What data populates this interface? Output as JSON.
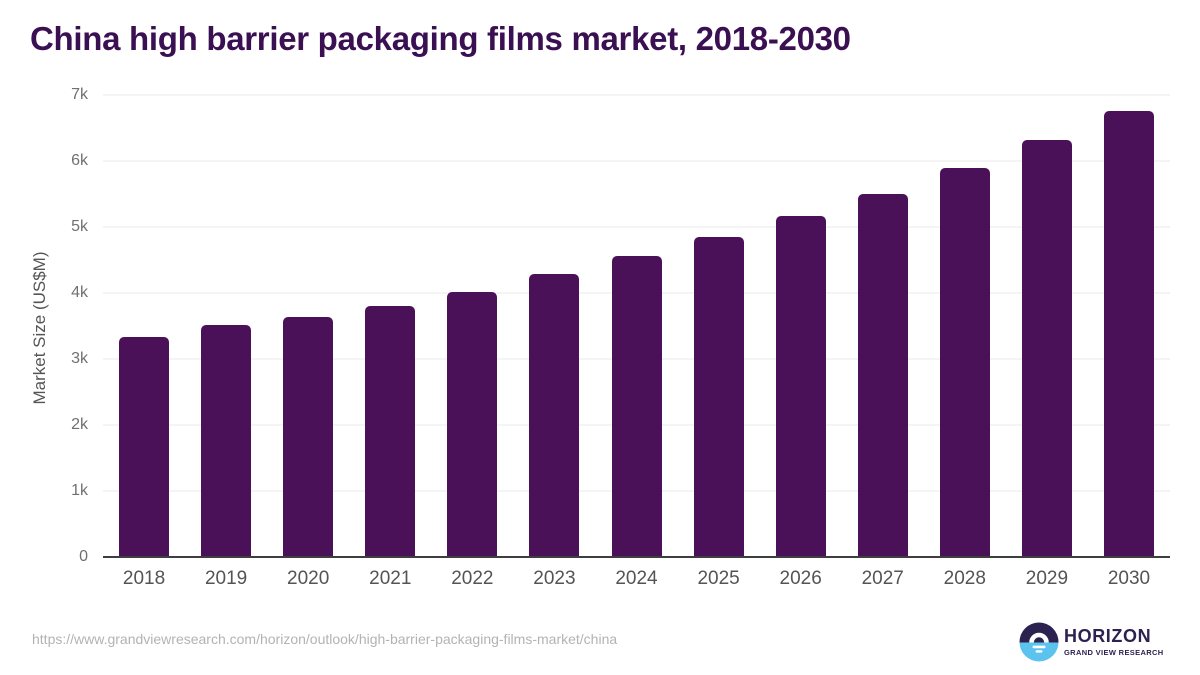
{
  "page": {
    "title": "China high barrier packaging films market, 2018-2030"
  },
  "chart_data": {
    "type": "bar",
    "title": "China high barrier packaging films market, 2018-2030",
    "categories": [
      "2018",
      "2019",
      "2020",
      "2021",
      "2022",
      "2023",
      "2024",
      "2025",
      "2026",
      "2027",
      "2028",
      "2029",
      "2030"
    ],
    "values": [
      3340,
      3510,
      3640,
      3800,
      4020,
      4290,
      4560,
      4850,
      5170,
      5500,
      5890,
      6320,
      6760
    ],
    "xlabel": "",
    "ylabel": "Market Size (US$M)",
    "ylim": [
      0,
      7000
    ],
    "ytick_values": [
      0,
      1000,
      2000,
      3000,
      4000,
      5000,
      6000,
      7000
    ],
    "ytick_labels": [
      "0",
      "1k",
      "2k",
      "3k",
      "4k",
      "5k",
      "6k",
      "7k"
    ],
    "grid": true,
    "legend": "none",
    "bar_color": "#4a1158"
  },
  "footer": {
    "source_url": "https://www.grandviewresearch.com/horizon/outlook/high-barrier-packaging-films-market/china",
    "logo": {
      "brand": "HORIZON",
      "tagline": "GRAND VIEW RESEARCH"
    }
  },
  "colors": {
    "title": "#3b1053",
    "bar": "#4a1158",
    "axis_label": "#555555",
    "xtick_label": "#545454",
    "ytick_label": "#707070",
    "gridline": "#e9e9e9",
    "baseline": "#3e3e3e",
    "source": "#b3b3b3",
    "logo_dark": "#2d2150",
    "logo_blue": "#5cc3ef"
  }
}
